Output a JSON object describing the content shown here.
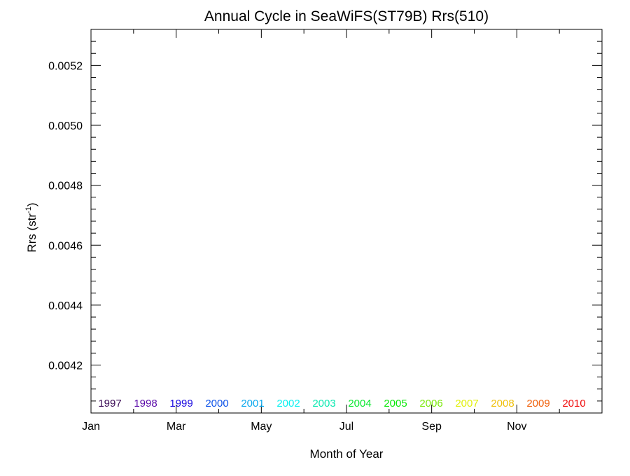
{
  "chart_data": {
    "type": "line",
    "title": "Annual Cycle in SeaWiFS(ST79B) Rrs(510)",
    "xlabel": "Month of Year",
    "ylabel_main": "Rrs (str",
    "ylabel_sup": "-1",
    "ylabel_close": ")",
    "xlim": [
      0,
      12
    ],
    "ylim": [
      0.00404,
      0.00532
    ],
    "x_ticks": [
      {
        "value": 0,
        "label": "Jan"
      },
      {
        "value": 2,
        "label": "Mar"
      },
      {
        "value": 4,
        "label": "May"
      },
      {
        "value": 6,
        "label": "Jul"
      },
      {
        "value": 8,
        "label": "Sep"
      },
      {
        "value": 10,
        "label": "Nov"
      }
    ],
    "x_minor_ticks": [
      1,
      3,
      5,
      7,
      9,
      11
    ],
    "y_ticks": [
      {
        "value": 0.0042,
        "label": "0.0042"
      },
      {
        "value": 0.0044,
        "label": "0.0044"
      },
      {
        "value": 0.0046,
        "label": "0.0046"
      },
      {
        "value": 0.0048,
        "label": "0.0048"
      },
      {
        "value": 0.005,
        "label": "0.0050"
      },
      {
        "value": 0.0052,
        "label": "0.0052"
      }
    ],
    "y_minor_step": 4e-05,
    "grid": false,
    "legend_placement": "bottom",
    "series": [
      {
        "name": "1997",
        "color": "#3a0a55",
        "values": []
      },
      {
        "name": "1998",
        "color": "#5a0aa8",
        "values": []
      },
      {
        "name": "1999",
        "color": "#1a0ae0",
        "values": []
      },
      {
        "name": "2000",
        "color": "#0a50e8",
        "values": []
      },
      {
        "name": "2001",
        "color": "#0aa8ee",
        "values": []
      },
      {
        "name": "2002",
        "color": "#0af0f0",
        "values": []
      },
      {
        "name": "2003",
        "color": "#0ae8b0",
        "values": []
      },
      {
        "name": "2004",
        "color": "#0ae830",
        "values": []
      },
      {
        "name": "2005",
        "color": "#0ae80a",
        "values": []
      },
      {
        "name": "2006",
        "color": "#7ae80a",
        "values": []
      },
      {
        "name": "2007",
        "color": "#e0f00a",
        "values": []
      },
      {
        "name": "2008",
        "color": "#f0c00a",
        "values": []
      },
      {
        "name": "2009",
        "color": "#f0600a",
        "values": []
      },
      {
        "name": "2010",
        "color": "#f00a0a",
        "values": []
      }
    ]
  }
}
